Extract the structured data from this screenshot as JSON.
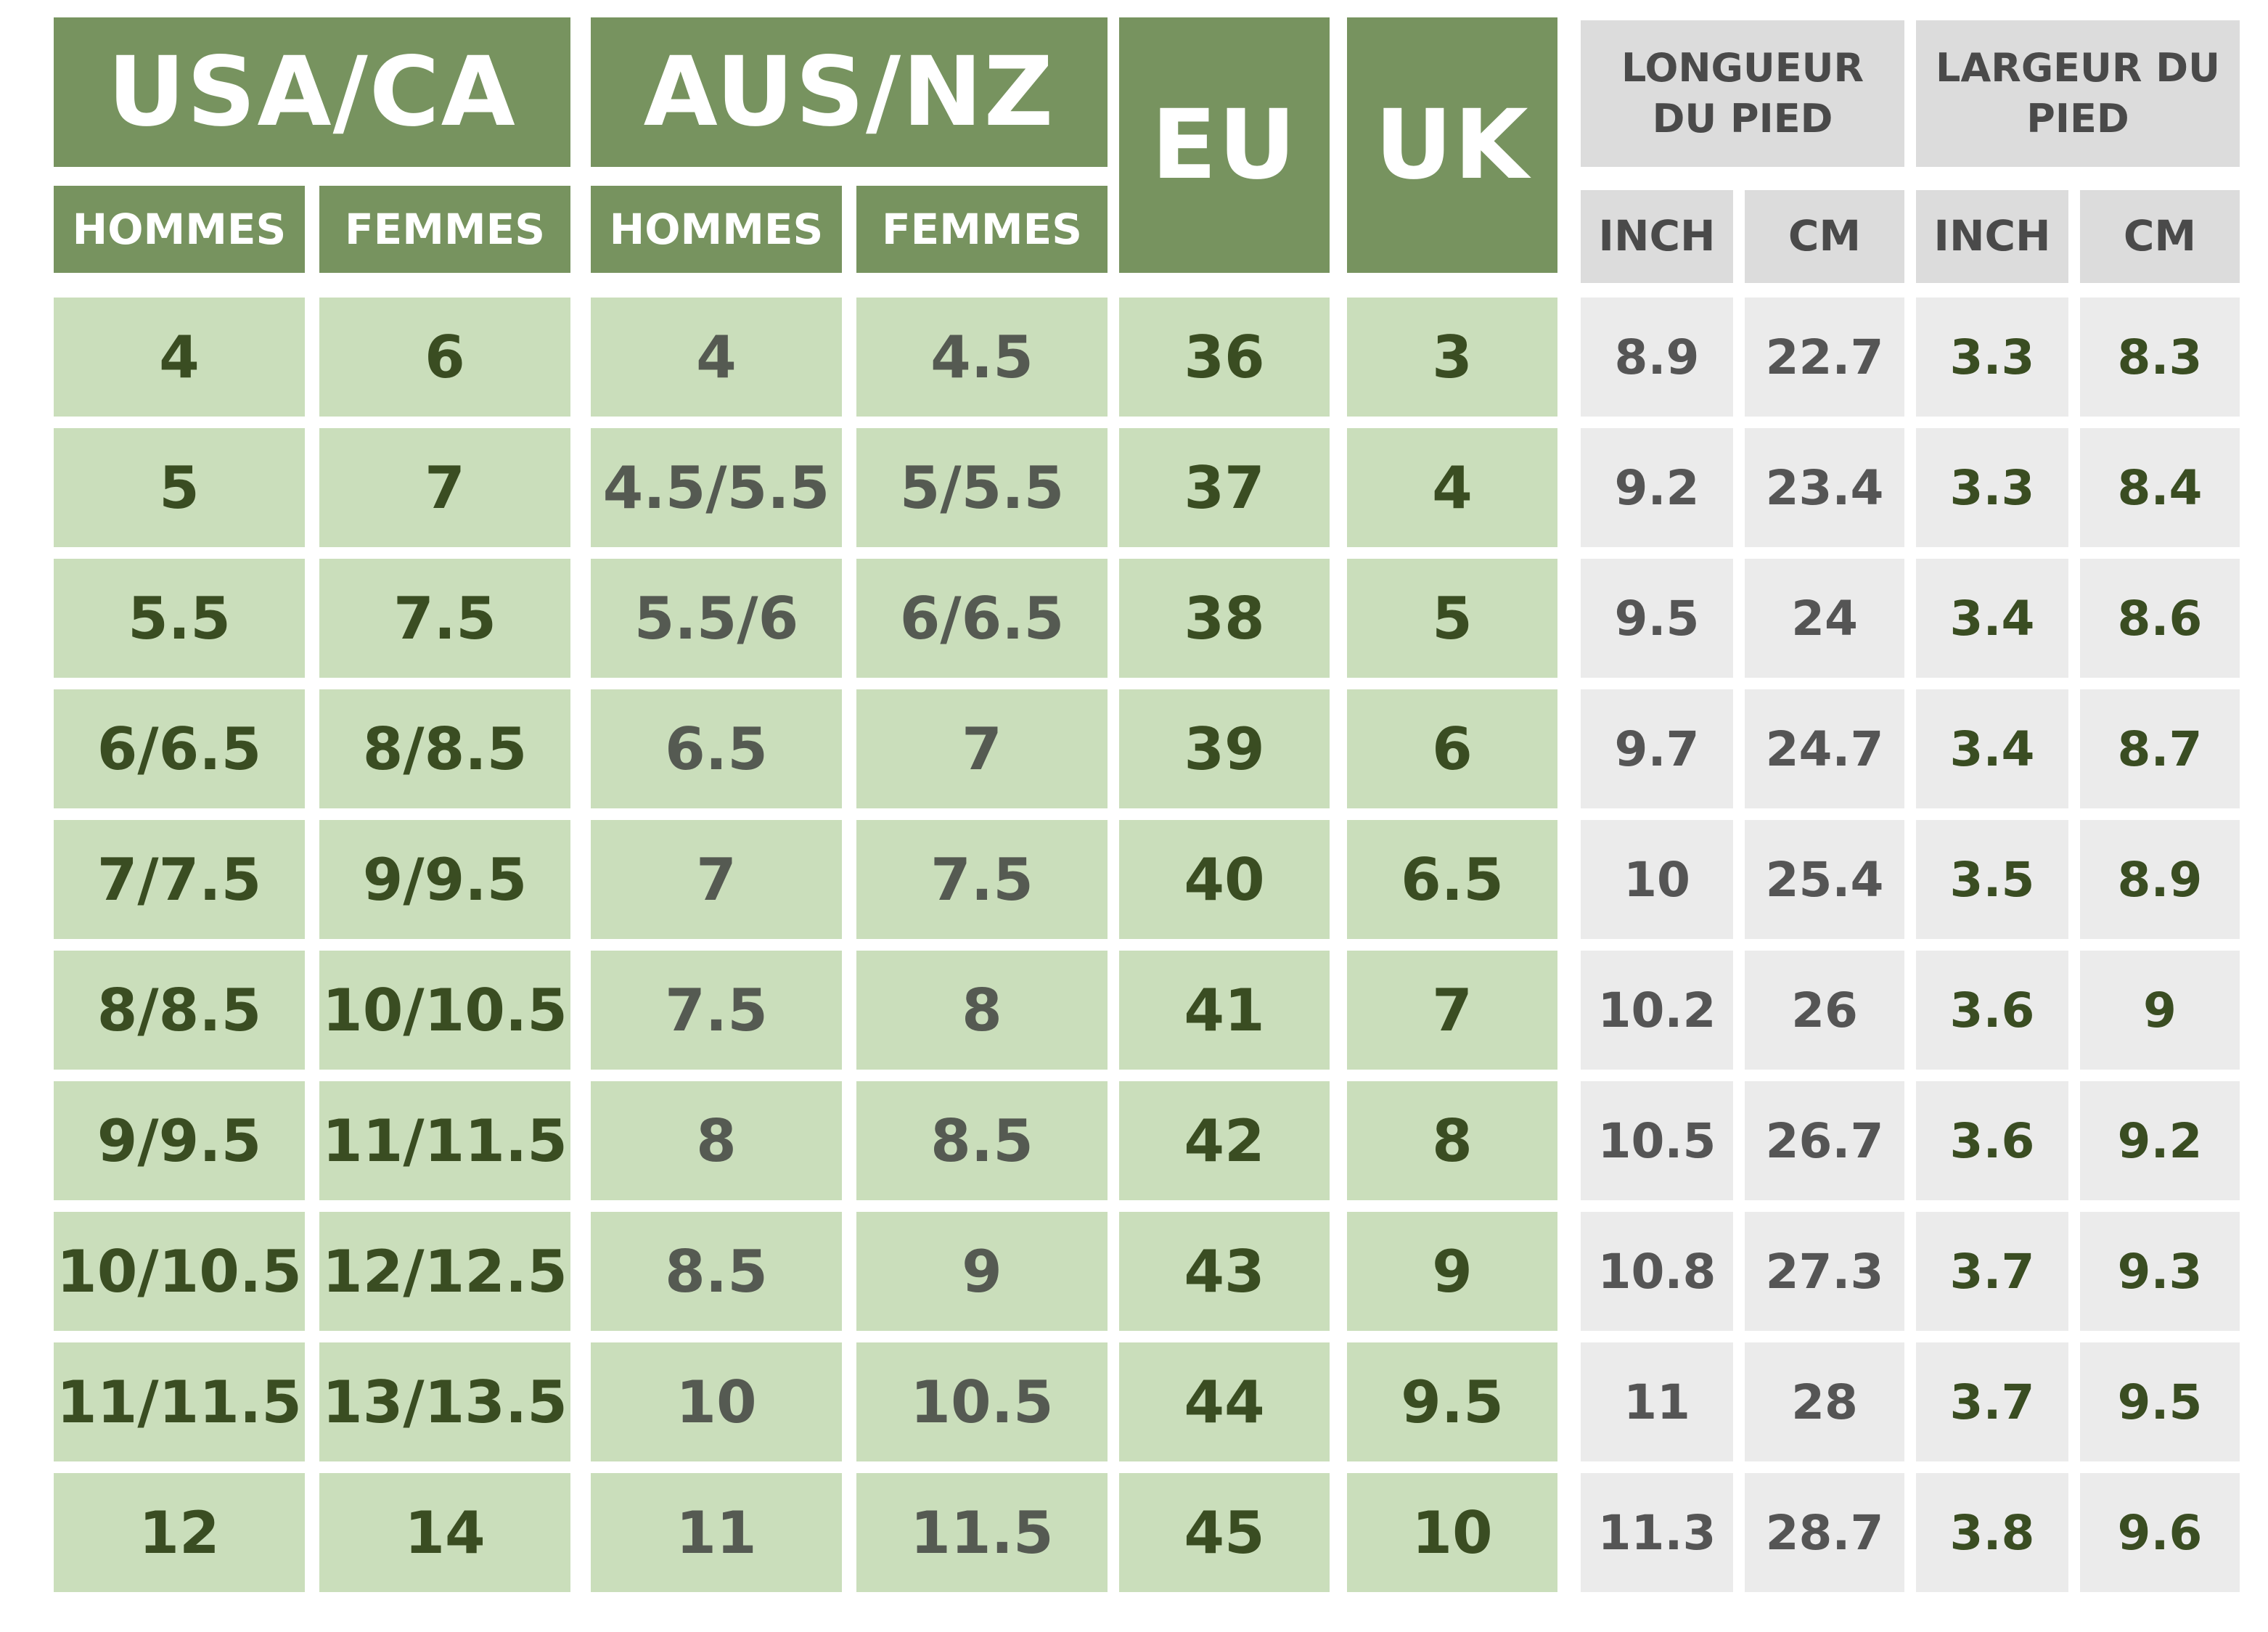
{
  "header": {
    "usa_ca": "USA/CA",
    "aus_nz": "AUS/NZ",
    "eu": "EU",
    "uk": "UK",
    "foot_length": "LONGUEUR\nDU PIED",
    "foot_width": "LARGEUR DU\nPIED",
    "hommes": "HOMMES",
    "femmes": "FEMMES",
    "inch": "INCH",
    "cm": "CM"
  },
  "columns": [
    "usa_men",
    "usa_women",
    "aus_men",
    "aus_women",
    "eu",
    "uk",
    "length_inch",
    "length_cm",
    "width_inch",
    "width_cm"
  ],
  "rows": [
    [
      "4",
      "6",
      "4",
      "4.5",
      "36",
      "3",
      "8.9",
      "22.7",
      "3.3",
      "8.3"
    ],
    [
      "5",
      "7",
      "4.5/5.5",
      "5/5.5",
      "37",
      "4",
      "9.2",
      "23.4",
      "3.3",
      "8.4"
    ],
    [
      "5.5",
      "7.5",
      "5.5/6",
      "6/6.5",
      "38",
      "5",
      "9.5",
      "24",
      "3.4",
      "8.6"
    ],
    [
      "6/6.5",
      "8/8.5",
      "6.5",
      "7",
      "39",
      "6",
      "9.7",
      "24.7",
      "3.4",
      "8.7"
    ],
    [
      "7/7.5",
      "9/9.5",
      "7",
      "7.5",
      "40",
      "6.5",
      "10",
      "25.4",
      "3.5",
      "8.9"
    ],
    [
      "8/8.5",
      "10/10.5",
      "7.5",
      "8",
      "41",
      "7",
      "10.2",
      "26",
      "3.6",
      "9"
    ],
    [
      "9/9.5",
      "11/11.5",
      "8",
      "8.5",
      "42",
      "8",
      "10.5",
      "26.7",
      "3.6",
      "9.2"
    ],
    [
      "10/10.5",
      "12/12.5",
      "8.5",
      "9",
      "43",
      "9",
      "10.8",
      "27.3",
      "3.7",
      "9.3"
    ],
    [
      "11/11.5",
      "13/13.5",
      "10",
      "10.5",
      "44",
      "9.5",
      "11",
      "28",
      "3.7",
      "9.5"
    ],
    [
      "12",
      "14",
      "11",
      "11.5",
      "45",
      "10",
      "11.3",
      "28.7",
      "3.8",
      "9.6"
    ]
  ],
  "colors": {
    "header_green": "#77935f",
    "cell_green": "#cadebb",
    "header_gray": "#dcdcdc",
    "cell_gray": "#ebebeb",
    "text_dark_green": "#3a4d22",
    "text_gray": "#555555"
  }
}
